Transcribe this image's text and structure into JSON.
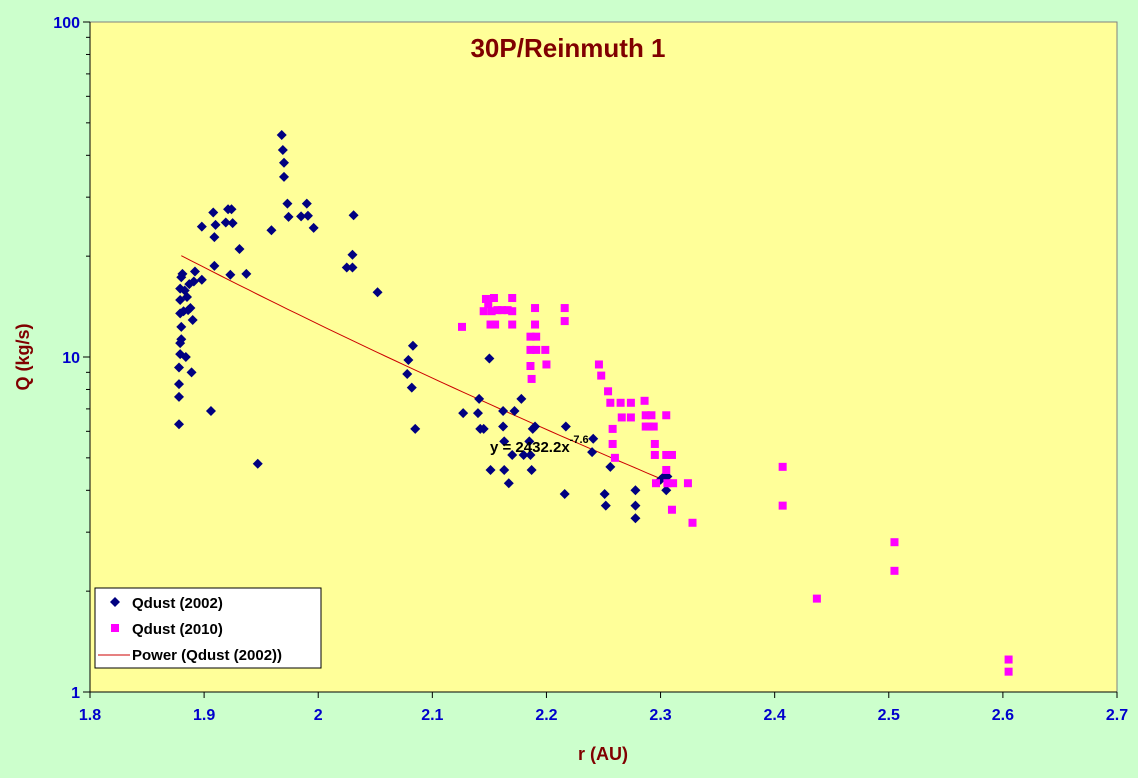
{
  "chart_data": {
    "type": "scatter",
    "title": "30P/Reinmuth 1",
    "xlabel": "r (AU)",
    "ylabel": "Q (kg/s)",
    "xlim": [
      1.8,
      2.7
    ],
    "ylim": [
      1,
      100
    ],
    "y_scale": "log",
    "grid": false,
    "legend_position": "bottom-left",
    "x_ticks": [
      "1.8",
      "1.9",
      "2",
      "2.1",
      "2.2",
      "2.3",
      "2.4",
      "2.5",
      "2.6",
      "2.7"
    ],
    "y_ticks": [
      "1",
      "10",
      "100"
    ],
    "colors": {
      "plot_background": "#ffff99",
      "page_background": "#ccffcc",
      "series_2002": "#000080",
      "series_2010": "#ff00ff",
      "trend": "#cc0000",
      "title": "#800000",
      "ticks": "#0000cc"
    },
    "trendline": {
      "name": "Power (Qdust (2002))",
      "equation_prefix": "y = 2432.2x",
      "equation_exponent": "-7.6",
      "coefficient": 2432.2,
      "exponent": -7.6,
      "x_range": [
        1.88,
        2.305
      ]
    },
    "series": [
      {
        "name": "Qdust (2002)",
        "marker": "diamond",
        "points": [
          [
            1.878,
            6.3
          ],
          [
            1.878,
            7.6
          ],
          [
            1.878,
            8.3
          ],
          [
            1.878,
            9.3
          ],
          [
            1.879,
            10.2
          ],
          [
            1.879,
            11.0
          ],
          [
            1.88,
            11.3
          ],
          [
            1.88,
            12.3
          ],
          [
            1.879,
            13.5
          ],
          [
            1.879,
            14.8
          ],
          [
            1.879,
            16.0
          ],
          [
            1.88,
            17.3
          ],
          [
            1.881,
            17.7
          ],
          [
            1.882,
            13.7
          ],
          [
            1.883,
            15.8
          ],
          [
            1.884,
            10.0
          ],
          [
            1.885,
            15.1
          ],
          [
            1.886,
            13.8
          ],
          [
            1.887,
            16.5
          ],
          [
            1.888,
            14.0
          ],
          [
            1.889,
            9.0
          ],
          [
            1.89,
            12.9
          ],
          [
            1.891,
            16.8
          ],
          [
            1.892,
            18.0
          ],
          [
            1.898,
            17.0
          ],
          [
            1.898,
            24.5
          ],
          [
            1.906,
            6.9
          ],
          [
            1.908,
            27.0
          ],
          [
            1.909,
            22.8
          ],
          [
            1.909,
            18.7
          ],
          [
            1.91,
            24.8
          ],
          [
            1.919,
            25.2
          ],
          [
            1.921,
            27.6
          ],
          [
            1.923,
            17.6
          ],
          [
            1.924,
            27.6
          ],
          [
            1.925,
            25.1
          ],
          [
            1.931,
            21.0
          ],
          [
            1.937,
            17.7
          ],
          [
            1.947,
            4.8
          ],
          [
            1.959,
            23.9
          ],
          [
            1.968,
            46.0
          ],
          [
            1.969,
            41.5
          ],
          [
            1.97,
            38.0
          ],
          [
            1.97,
            34.5
          ],
          [
            1.973,
            28.7
          ],
          [
            1.974,
            26.2
          ],
          [
            1.985,
            26.3
          ],
          [
            1.99,
            28.7
          ],
          [
            1.991,
            26.4
          ],
          [
            1.996,
            24.3
          ],
          [
            2.025,
            18.5
          ],
          [
            2.03,
            18.5
          ],
          [
            2.03,
            20.2
          ],
          [
            2.031,
            26.5
          ],
          [
            2.052,
            15.6
          ],
          [
            2.078,
            8.9
          ],
          [
            2.079,
            9.8
          ],
          [
            2.082,
            8.1
          ],
          [
            2.083,
            10.8
          ],
          [
            2.085,
            6.1
          ],
          [
            2.127,
            6.8
          ],
          [
            2.14,
            6.8
          ],
          [
            2.141,
            7.5
          ],
          [
            2.142,
            6.1
          ],
          [
            2.145,
            6.1
          ],
          [
            2.15,
            9.9
          ],
          [
            2.151,
            4.6
          ],
          [
            2.162,
            6.2
          ],
          [
            2.162,
            6.9
          ],
          [
            2.163,
            5.6
          ],
          [
            2.163,
            4.6
          ],
          [
            2.167,
            4.2
          ],
          [
            2.17,
            5.1
          ],
          [
            2.172,
            6.9
          ],
          [
            2.178,
            7.5
          ],
          [
            2.18,
            5.1
          ],
          [
            2.185,
            5.6
          ],
          [
            2.186,
            5.1
          ],
          [
            2.187,
            4.6
          ],
          [
            2.188,
            6.1
          ],
          [
            2.19,
            6.2
          ],
          [
            2.216,
            3.9
          ],
          [
            2.217,
            6.2
          ],
          [
            2.24,
            5.2
          ],
          [
            2.241,
            5.7
          ],
          [
            2.251,
            3.9
          ],
          [
            2.252,
            3.6
          ],
          [
            2.256,
            4.7
          ],
          [
            2.278,
            3.6
          ],
          [
            2.278,
            3.3
          ],
          [
            2.278,
            4.0
          ],
          [
            2.3,
            4.3
          ],
          [
            2.303,
            4.4
          ],
          [
            2.305,
            4.0
          ],
          [
            2.306,
            4.4
          ]
        ]
      },
      {
        "name": "Qdust (2010)",
        "marker": "square",
        "points": [
          [
            2.126,
            12.3
          ],
          [
            2.145,
            13.7
          ],
          [
            2.147,
            14.9
          ],
          [
            2.149,
            14.4
          ],
          [
            2.151,
            12.5
          ],
          [
            2.152,
            13.7
          ],
          [
            2.154,
            15.0
          ],
          [
            2.155,
            12.5
          ],
          [
            2.157,
            13.8
          ],
          [
            2.161,
            13.8
          ],
          [
            2.166,
            13.8
          ],
          [
            2.17,
            15.0
          ],
          [
            2.17,
            12.5
          ],
          [
            2.17,
            13.7
          ],
          [
            2.186,
            11.5
          ],
          [
            2.186,
            10.5
          ],
          [
            2.186,
            9.4
          ],
          [
            2.187,
            8.6
          ],
          [
            2.19,
            14.0
          ],
          [
            2.19,
            12.5
          ],
          [
            2.191,
            11.5
          ],
          [
            2.191,
            10.5
          ],
          [
            2.199,
            10.5
          ],
          [
            2.2,
            9.5
          ],
          [
            2.216,
            14.0
          ],
          [
            2.216,
            12.8
          ],
          [
            2.246,
            9.5
          ],
          [
            2.248,
            8.8
          ],
          [
            2.254,
            7.9
          ],
          [
            2.256,
            7.3
          ],
          [
            2.258,
            6.1
          ],
          [
            2.258,
            5.5
          ],
          [
            2.26,
            5.0
          ],
          [
            2.265,
            7.3
          ],
          [
            2.266,
            6.6
          ],
          [
            2.274,
            7.3
          ],
          [
            2.274,
            6.6
          ],
          [
            2.286,
            7.4
          ],
          [
            2.287,
            6.7
          ],
          [
            2.287,
            6.2
          ],
          [
            2.29,
            6.2
          ],
          [
            2.292,
            6.7
          ],
          [
            2.294,
            6.2
          ],
          [
            2.295,
            5.5
          ],
          [
            2.295,
            5.1
          ],
          [
            2.296,
            4.2
          ],
          [
            2.305,
            6.7
          ],
          [
            2.305,
            5.1
          ],
          [
            2.305,
            4.6
          ],
          [
            2.306,
            4.2
          ],
          [
            2.31,
            5.1
          ],
          [
            2.31,
            3.5
          ],
          [
            2.311,
            4.2
          ],
          [
            2.324,
            4.2
          ],
          [
            2.328,
            3.2
          ],
          [
            2.407,
            4.7
          ],
          [
            2.407,
            3.6
          ],
          [
            2.437,
            1.9
          ],
          [
            2.505,
            2.8
          ],
          [
            2.505,
            2.3
          ],
          [
            2.605,
            1.25
          ],
          [
            2.605,
            1.15
          ]
        ]
      }
    ]
  }
}
